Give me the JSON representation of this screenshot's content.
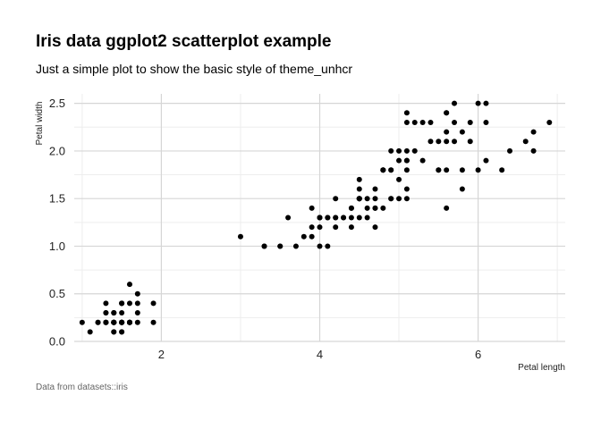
{
  "chart_data": {
    "type": "scatter",
    "title": "Iris data ggplot2 scatterplot example",
    "subtitle": "Just a simple plot to show the basic style of theme_unhcr",
    "caption": "Data from datasets::iris",
    "xlabel": "Petal length",
    "ylabel": "Petal width",
    "xlim": [
      0.9,
      7.1
    ],
    "ylim": [
      0,
      2.6
    ],
    "x_ticks": [
      2,
      4,
      6
    ],
    "x_tick_labels": [
      "2",
      "4",
      "6"
    ],
    "y_ticks": [
      0,
      0.5,
      1,
      1.5,
      2,
      2.5
    ],
    "y_tick_labels": [
      "0.0",
      "0.5",
      "1.0",
      "1.5",
      "2.0",
      "2.5"
    ],
    "grid": true,
    "point_color": "#000000",
    "series": [
      {
        "x": [
          1.4,
          1.4,
          1.3,
          1.5,
          1.4,
          1.7,
          1.4,
          1.5,
          1.4,
          1.5,
          1.5,
          1.6,
          1.4,
          1.1,
          1.2,
          1.5,
          1.3,
          1.4,
          1.7,
          1.5,
          1.7,
          1.5,
          1.0,
          1.7,
          1.9,
          1.6,
          1.6,
          1.5,
          1.4,
          1.6,
          1.6,
          1.5,
          1.5,
          1.4,
          1.5,
          1.2,
          1.3,
          1.4,
          1.3,
          1.5,
          1.3,
          1.3,
          1.3,
          1.6,
          1.9,
          1.4,
          1.6,
          1.4,
          1.5,
          1.4,
          4.7,
          4.5,
          4.9,
          4.0,
          4.6,
          4.5,
          4.7,
          3.3,
          4.6,
          3.9,
          3.5,
          4.2,
          4.0,
          4.7,
          3.6,
          4.4,
          4.5,
          4.1,
          4.5,
          3.9,
          4.8,
          4.0,
          4.9,
          4.7,
          4.3,
          4.4,
          4.8,
          5.0,
          4.5,
          3.5,
          3.8,
          3.7,
          3.9,
          5.1,
          4.5,
          4.5,
          4.7,
          4.4,
          4.1,
          4.0,
          4.4,
          4.6,
          4.0,
          3.3,
          4.2,
          4.2,
          4.2,
          4.3,
          3.0,
          4.1,
          6.0,
          5.1,
          5.9,
          5.6,
          5.8,
          6.6,
          4.5,
          6.3,
          5.8,
          6.1,
          5.1,
          5.3,
          5.5,
          5.0,
          5.1,
          5.3,
          5.5,
          6.7,
          6.9,
          5.0,
          5.7,
          4.9,
          6.7,
          4.9,
          5.7,
          6.0,
          4.8,
          4.9,
          5.6,
          5.8,
          6.1,
          6.4,
          5.6,
          5.1,
          5.6,
          6.1,
          5.6,
          5.5,
          4.8,
          5.4,
          5.6,
          5.1,
          5.1,
          5.9,
          5.7,
          5.2,
          5.0,
          5.2,
          5.4,
          5.1
        ],
        "y": [
          0.2,
          0.2,
          0.2,
          0.2,
          0.2,
          0.4,
          0.3,
          0.2,
          0.2,
          0.1,
          0.2,
          0.2,
          0.1,
          0.1,
          0.2,
          0.4,
          0.4,
          0.3,
          0.3,
          0.3,
          0.2,
          0.4,
          0.2,
          0.5,
          0.2,
          0.2,
          0.4,
          0.2,
          0.2,
          0.2,
          0.2,
          0.4,
          0.1,
          0.2,
          0.2,
          0.2,
          0.2,
          0.1,
          0.2,
          0.2,
          0.3,
          0.3,
          0.2,
          0.6,
          0.4,
          0.3,
          0.2,
          0.2,
          0.2,
          0.2,
          1.4,
          1.5,
          1.5,
          1.3,
          1.5,
          1.3,
          1.6,
          1.0,
          1.3,
          1.4,
          1.0,
          1.5,
          1.0,
          1.4,
          1.3,
          1.4,
          1.5,
          1.0,
          1.5,
          1.1,
          1.8,
          1.3,
          1.5,
          1.2,
          1.3,
          1.4,
          1.4,
          1.7,
          1.5,
          1.0,
          1.1,
          1.0,
          1.2,
          1.6,
          1.5,
          1.6,
          1.5,
          1.3,
          1.3,
          1.3,
          1.2,
          1.4,
          1.2,
          1.0,
          1.3,
          1.2,
          1.3,
          1.3,
          1.1,
          1.3,
          2.5,
          1.9,
          2.1,
          1.8,
          2.2,
          2.1,
          1.7,
          1.8,
          1.8,
          2.5,
          2.0,
          1.9,
          2.1,
          2.0,
          2.4,
          2.3,
          1.8,
          2.2,
          2.3,
          1.5,
          2.3,
          2.0,
          2.0,
          1.8,
          2.1,
          1.8,
          1.8,
          1.8,
          2.1,
          1.6,
          1.9,
          2.0,
          2.2,
          1.5,
          1.4,
          2.3,
          2.4,
          1.8,
          1.8,
          2.1,
          2.4,
          2.3,
          1.9,
          2.3,
          2.5,
          2.3,
          1.9,
          2.0,
          2.3,
          1.8
        ]
      }
    ]
  }
}
